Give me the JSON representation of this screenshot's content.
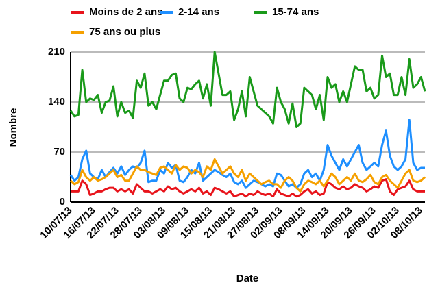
{
  "chart_data": {
    "type": "line",
    "xlabel": "Date",
    "ylabel": "Nombre",
    "categories": [
      "10/07/13",
      null,
      null,
      null,
      null,
      null,
      "16/07/13",
      null,
      null,
      null,
      null,
      null,
      "22/07/13",
      null,
      null,
      null,
      null,
      null,
      "28/07/13",
      null,
      null,
      null,
      null,
      null,
      "03/08/13",
      null,
      null,
      null,
      null,
      null,
      "09/08/13",
      null,
      null,
      null,
      null,
      null,
      "15/08/13",
      null,
      null,
      null,
      null,
      null,
      "21/08/13",
      null,
      null,
      null,
      null,
      null,
      "27/08/13",
      null,
      null,
      null,
      null,
      null,
      "02/09/13",
      null,
      null,
      null,
      null,
      null,
      "08/09/13",
      null,
      null,
      null,
      null,
      null,
      "14/09/13",
      null,
      null,
      null,
      null,
      null,
      "20/09/13",
      null,
      null,
      null,
      null,
      null,
      "26/09/13",
      null,
      null,
      null,
      null,
      null,
      "02/10/13",
      null,
      null,
      null,
      null,
      null,
      "08/10/13",
      null
    ],
    "series": [
      {
        "name": "Moins de 2 ans",
        "color": "#e8141b",
        "values": [
          15,
          15,
          15,
          30,
          25,
          10,
          12,
          15,
          15,
          18,
          20,
          20,
          15,
          18,
          15,
          18,
          12,
          25,
          20,
          15,
          15,
          12,
          15,
          18,
          15,
          22,
          18,
          20,
          15,
          12,
          15,
          18,
          15,
          20,
          12,
          15,
          10,
          20,
          18,
          15,
          12,
          15,
          8,
          10,
          12,
          8,
          12,
          10,
          15,
          12,
          10,
          12,
          8,
          18,
          12,
          10,
          8,
          12,
          8,
          10,
          15,
          18,
          12,
          15,
          10,
          12,
          28,
          25,
          20,
          18,
          22,
          18,
          20,
          25,
          22,
          20,
          15,
          18,
          22,
          20,
          30,
          32,
          15,
          10,
          18,
          20,
          22,
          30,
          18,
          15,
          15,
          15
        ]
      },
      {
        "name": "2-14 ans",
        "color": "#1e8fff",
        "values": [
          38,
          30,
          35,
          60,
          72,
          40,
          35,
          32,
          45,
          35,
          42,
          48,
          40,
          50,
          38,
          45,
          50,
          48,
          55,
          72,
          28,
          30,
          30,
          45,
          40,
          55,
          48,
          52,
          30,
          28,
          35,
          45,
          40,
          55,
          30,
          35,
          40,
          45,
          42,
          38,
          35,
          40,
          28,
          25,
          30,
          20,
          25,
          30,
          28,
          25,
          22,
          25,
          22,
          40,
          38,
          30,
          22,
          25,
          20,
          25,
          40,
          45,
          35,
          40,
          30,
          45,
          80,
          65,
          55,
          45,
          60,
          50,
          60,
          70,
          80,
          55,
          45,
          50,
          55,
          50,
          80,
          100,
          65,
          50,
          45,
          50,
          60,
          115,
          55,
          45,
          48,
          48
        ]
      },
      {
        "name": "15-74 ans",
        "color": "#1a9a1a",
        "values": [
          128,
          120,
          122,
          185,
          140,
          145,
          143,
          150,
          125,
          140,
          142,
          162,
          120,
          140,
          125,
          128,
          118,
          170,
          160,
          180,
          135,
          140,
          130,
          150,
          170,
          170,
          178,
          180,
          145,
          140,
          160,
          158,
          165,
          170,
          145,
          165,
          135,
          210,
          180,
          150,
          150,
          155,
          115,
          130,
          155,
          120,
          175,
          155,
          135,
          130,
          125,
          120,
          110,
          160,
          140,
          130,
          110,
          138,
          105,
          110,
          160,
          155,
          150,
          130,
          150,
          115,
          175,
          160,
          165,
          140,
          155,
          140,
          165,
          190,
          185,
          185,
          155,
          160,
          145,
          150,
          205,
          175,
          180,
          150,
          150,
          175,
          150,
          200,
          160,
          165,
          175,
          155
        ]
      },
      {
        "name": "75 ans ou plus",
        "color": "#f5a000",
        "values": [
          30,
          25,
          28,
          45,
          35,
          30,
          35,
          30,
          32,
          35,
          40,
          45,
          35,
          38,
          30,
          30,
          40,
          50,
          45,
          45,
          42,
          40,
          38,
          48,
          50,
          45,
          40,
          52,
          45,
          50,
          48,
          40,
          45,
          42,
          35,
          50,
          45,
          60,
          50,
          40,
          45,
          50,
          40,
          35,
          45,
          30,
          40,
          35,
          30,
          25,
          28,
          30,
          25,
          25,
          20,
          30,
          35,
          30,
          20,
          15,
          25,
          30,
          28,
          25,
          30,
          22,
          30,
          40,
          35,
          25,
          30,
          35,
          30,
          40,
          30,
          28,
          32,
          38,
          28,
          25,
          35,
          38,
          30,
          25,
          20,
          30,
          40,
          45,
          30,
          28,
          30,
          35
        ]
      }
    ],
    "ylim": [
      0,
      210
    ],
    "yticks": [
      0,
      70,
      140,
      210
    ],
    "grid": true
  }
}
